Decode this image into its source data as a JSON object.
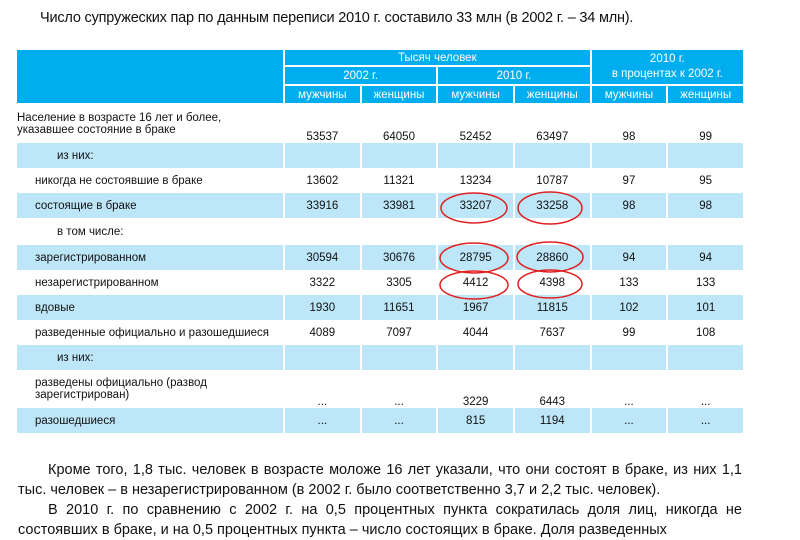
{
  "intro": "Число супружеских пар по данным переписи 2010 г. составило 33 млн (в 2002 г. – 34 млн).",
  "header": {
    "thousands": "Тысяч человек",
    "pct": "2010 г.\nв процентах к 2002 г.",
    "y2002": "2002 г.",
    "y2010": "2010 г.",
    "men": "мужчины",
    "women": "женщины"
  },
  "rows": [
    {
      "label": "Население в возрасте 16 лет и более, указавшее состояние в браке",
      "v": [
        "53537",
        "64050",
        "52452",
        "63497",
        "98",
        "99"
      ]
    },
    {
      "label": "из них:",
      "v": [
        "",
        "",
        "",
        "",
        "",
        ""
      ]
    },
    {
      "label": "никогда не состоявшие в браке",
      "v": [
        "13602",
        "11321",
        "13234",
        "10787",
        "97",
        "95"
      ]
    },
    {
      "label": "состоящие в браке",
      "v": [
        "33916",
        "33981",
        "33207",
        "33258",
        "98",
        "98"
      ]
    },
    {
      "label": "в том числе:",
      "v": [
        "",
        "",
        "",
        "",
        "",
        ""
      ]
    },
    {
      "label": "зарегистрированном",
      "v": [
        "30594",
        "30676",
        "28795",
        "28860",
        "94",
        "94"
      ]
    },
    {
      "label": "незарегистрированном",
      "v": [
        "3322",
        "3305",
        "4412",
        "4398",
        "133",
        "133"
      ]
    },
    {
      "label": "вдовые",
      "v": [
        "1930",
        "11651",
        "1967",
        "11815",
        "102",
        "101"
      ]
    },
    {
      "label": "разведенные официально и разошедшиеся",
      "v": [
        "4089",
        "7097",
        "4044",
        "7637",
        "99",
        "108"
      ]
    },
    {
      "label": "из них:",
      "v": [
        "",
        "",
        "",
        "",
        "",
        ""
      ]
    },
    {
      "label": "разведены официально (развод зарегистрирован)",
      "v": [
        "...",
        "...",
        "3229",
        "6443",
        "...",
        "..."
      ]
    },
    {
      "label": "разошедшиеся",
      "v": [
        "...",
        "...",
        "815",
        "1194",
        "...",
        "..."
      ]
    }
  ],
  "para1": "Кроме того, 1,8 тыс. человек в возрасте моложе 16 лет указали, что они состоят в браке, из них 1,1 тыс. человек – в незарегистрированном (в 2002 г. было соответственно 3,7 и 2,2 тыс. человек).",
  "para2": "В 2010 г. по сравнению с 2002 г. на 0,5 процентных пункта сократилась доля лиц, никогда не состоявших в браке, и на 0,5 процентных пункта – число состоящих в браке. Доля разведенных",
  "colors": {
    "header": "#00aeef",
    "stripe": "#bde6f8",
    "annotation": "#e02020"
  }
}
